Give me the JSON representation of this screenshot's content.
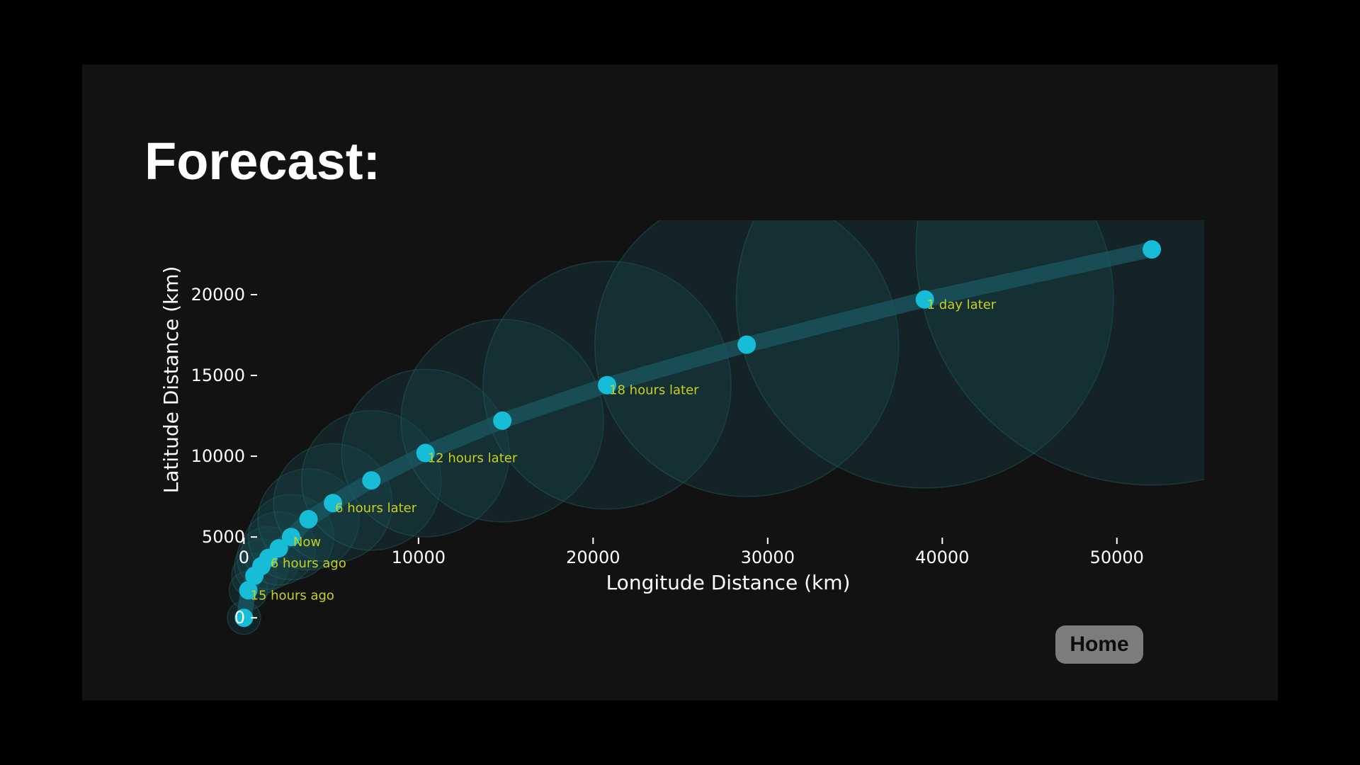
{
  "page": {
    "title": "Forecast:",
    "home_button": "Home"
  },
  "colors": {
    "background": "#121212",
    "marker": "#17bcd6",
    "annotation": "#c9cf1f",
    "uncertainty_fill": "#1a4a52",
    "track_line": "#1b5a65",
    "text": "#ffffff"
  },
  "chart_data": {
    "type": "scatter",
    "title": "",
    "xlabel": "Longitude Distance (km)",
    "ylabel": "Latitude Distance (km)",
    "xlim": [
      -1800,
      55000
    ],
    "ylim": [
      -1700,
      24600
    ],
    "xticks": [
      0,
      10000,
      20000,
      30000,
      40000,
      50000
    ],
    "yticks": [
      0,
      5000,
      10000,
      15000,
      20000
    ],
    "xtick_labels": [
      "0",
      "10000",
      "20000",
      "30000",
      "40000",
      "50000"
    ],
    "ytick_labels": [
      "0",
      "5000",
      "10000",
      "15000",
      "20000"
    ],
    "grid": false,
    "points": [
      {
        "x": 0,
        "y": 0,
        "r": 950,
        "label": ""
      },
      {
        "x": 250,
        "y": 1700,
        "r": 1100,
        "label": "15 hours ago"
      },
      {
        "x": 600,
        "y": 2600,
        "r": 1300,
        "label": ""
      },
      {
        "x": 1000,
        "y": 3200,
        "r": 1550,
        "label": ""
      },
      {
        "x": 1400,
        "y": 3700,
        "r": 1800,
        "label": "6 hours ago"
      },
      {
        "x": 2000,
        "y": 4300,
        "r": 2100,
        "label": ""
      },
      {
        "x": 2700,
        "y": 5000,
        "r": 2450,
        "label": "Now"
      },
      {
        "x": 3700,
        "y": 6100,
        "r": 2900,
        "label": ""
      },
      {
        "x": 5100,
        "y": 7100,
        "r": 3400,
        "label": "6 hours later"
      },
      {
        "x": 7300,
        "y": 8500,
        "r": 4000,
        "label": ""
      },
      {
        "x": 10400,
        "y": 10200,
        "r": 4800,
        "label": "12 hours later"
      },
      {
        "x": 14800,
        "y": 12200,
        "r": 5800,
        "label": ""
      },
      {
        "x": 20800,
        "y": 14400,
        "r": 7100,
        "label": "18 hours later"
      },
      {
        "x": 28800,
        "y": 16900,
        "r": 8700,
        "label": ""
      },
      {
        "x": 39000,
        "y": 19700,
        "r": 10800,
        "label": "1 day later"
      },
      {
        "x": 52000,
        "y": 22800,
        "r": 13500,
        "label": ""
      }
    ]
  }
}
